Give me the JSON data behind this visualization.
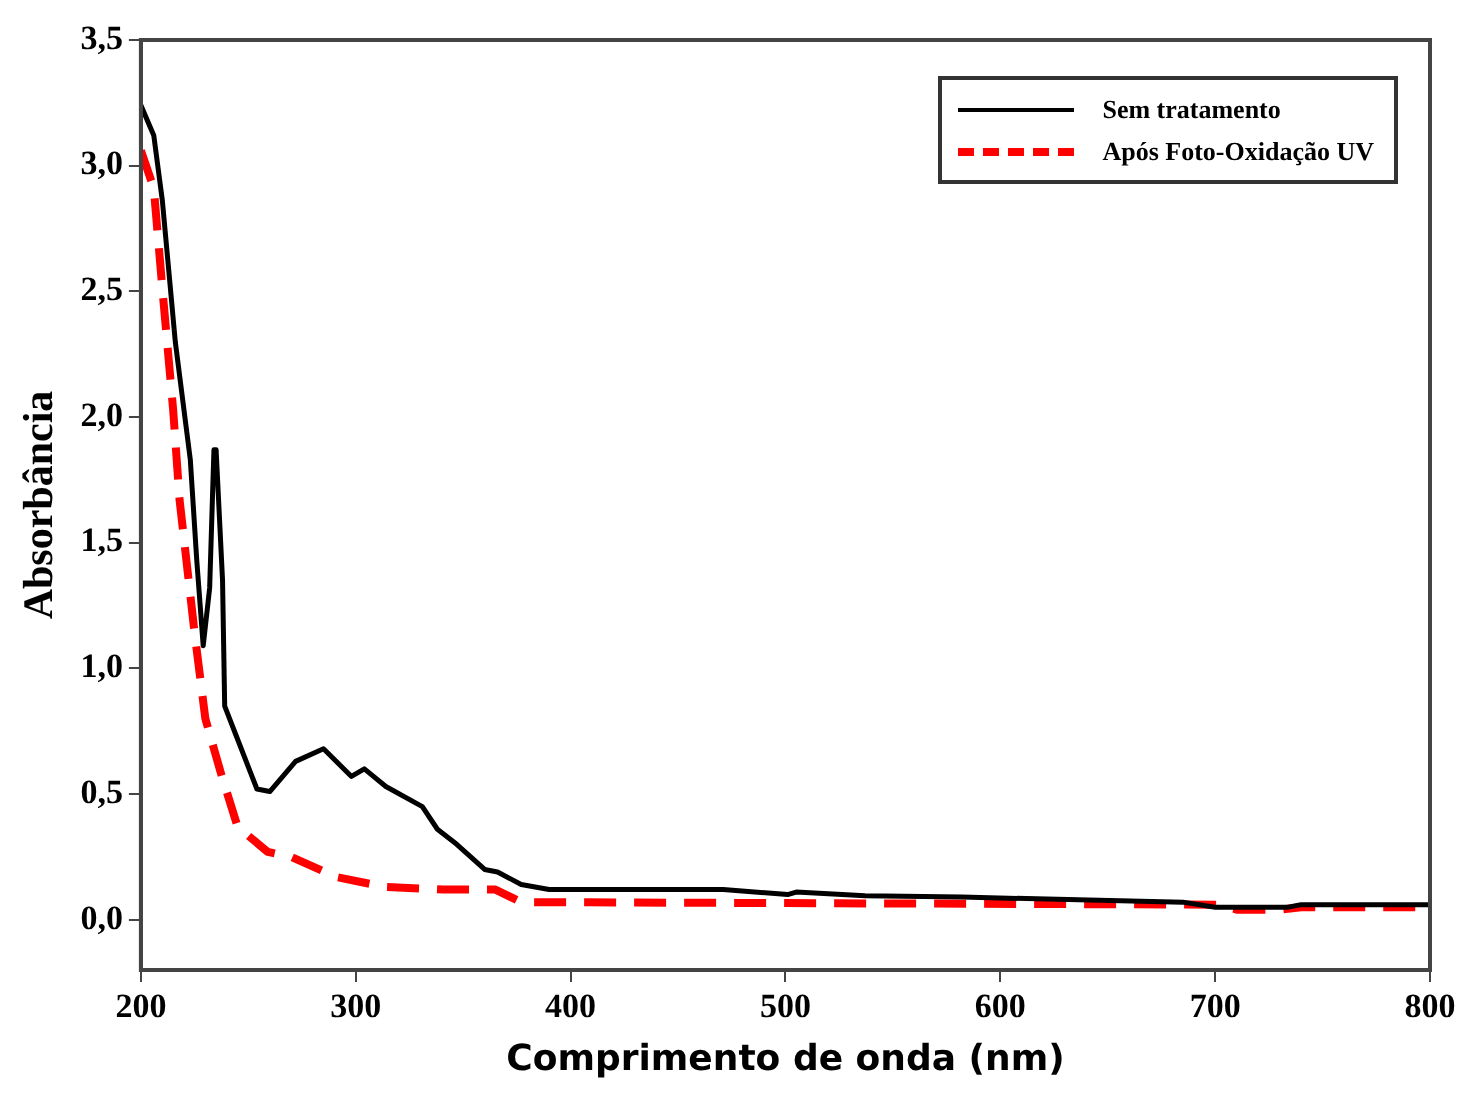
{
  "chart_data": {
    "type": "line",
    "xlabel": "Comprimento de onda (nm)",
    "ylabel": "Absorbância",
    "xlim": [
      200,
      800
    ],
    "xticks": [
      200,
      300,
      400,
      500,
      600,
      700,
      800
    ],
    "ylim": [
      -0.2,
      3.5
    ],
    "yticks": [
      {
        "value": 0,
        "label": "0,0"
      },
      {
        "value": 0.5,
        "label": "0,5"
      },
      {
        "value": 1,
        "label": "1,0"
      },
      {
        "value": 1.5,
        "label": "1,5"
      },
      {
        "value": 2,
        "label": "2,0"
      },
      {
        "value": 2.5,
        "label": "2,5"
      },
      {
        "value": 3,
        "label": "3,0"
      },
      {
        "value": 3.5,
        "label": "3,5"
      }
    ],
    "grid": false,
    "legend": "top right",
    "marker": "none",
    "series": [
      {
        "name": "Sem tratamento",
        "color": "#000000",
        "line_style": "solid",
        "x": [
          200,
          206,
          210,
          216,
          223,
          226,
          229,
          232,
          234,
          235,
          238,
          239,
          244,
          254,
          260,
          272,
          285,
          298,
          304,
          314,
          331,
          338,
          347,
          360,
          366,
          377,
          390,
          471,
          501,
          505,
          537,
          582,
          685,
          700,
          734,
          740,
          800
        ],
        "values": [
          3.24,
          3.12,
          2.86,
          2.3,
          1.83,
          1.43,
          1.09,
          1.32,
          1.87,
          1.87,
          1.35,
          0.85,
          0.74,
          0.52,
          0.51,
          0.63,
          0.68,
          0.57,
          0.6,
          0.53,
          0.45,
          0.36,
          0.3,
          0.2,
          0.19,
          0.14,
          0.12,
          0.12,
          0.1,
          0.11,
          0.095,
          0.09,
          0.07,
          0.05,
          0.05,
          0.06,
          0.06
        ]
      },
      {
        "name": "Após Foto-Oxidação UV",
        "color": "#ff0000",
        "line_style": "dashed",
        "x": [
          200,
          206,
          210,
          215,
          218,
          225,
          230,
          237,
          245,
          259,
          270,
          291,
          314,
          341,
          365,
          377,
          702,
          710,
          730,
          740,
          800
        ],
        "values": [
          3.06,
          2.91,
          2.51,
          2.03,
          1.67,
          1.14,
          0.8,
          0.59,
          0.37,
          0.27,
          0.25,
          0.17,
          0.13,
          0.12,
          0.12,
          0.07,
          0.06,
          0.04,
          0.04,
          0.05,
          0.05
        ]
      }
    ]
  }
}
